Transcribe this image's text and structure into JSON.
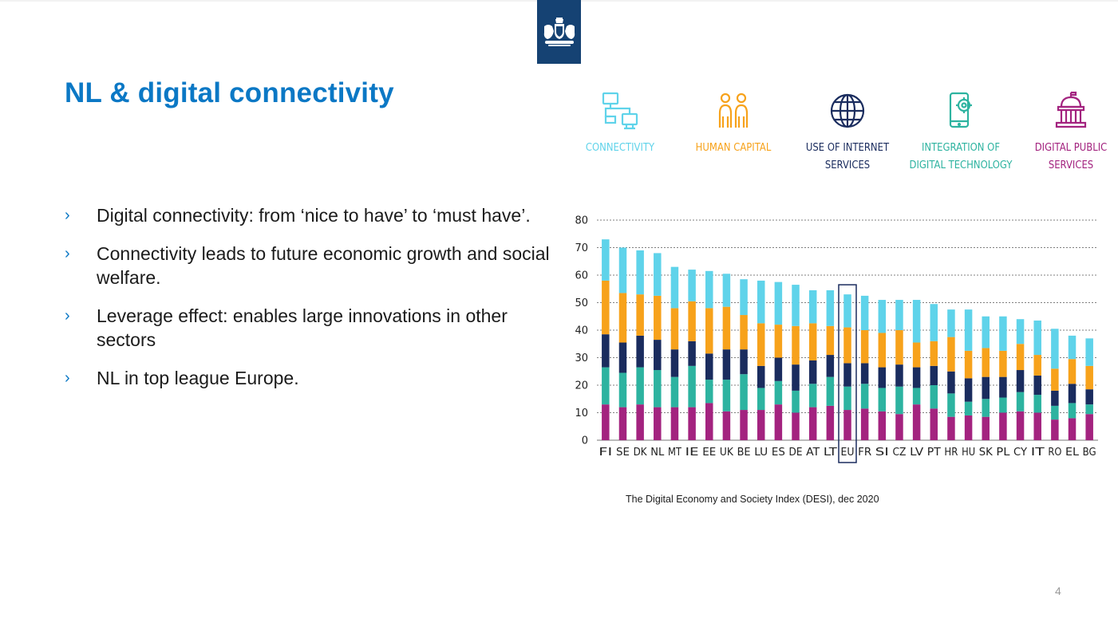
{
  "slide": {
    "title": "NL & digital connectivity",
    "bullet_marker": "›",
    "bullets": [
      "Digital connectivity: from ‘nice to have’ to ‘must have’.",
      "Connectivity leads to future economic growth and social welfare.",
      "Leverage effect: enables large innovations in other sectors",
      "NL in top league Europe."
    ],
    "source": "The Digital Economy and Society Index (DESI), dec 2020",
    "page_number": "4"
  },
  "legend": [
    {
      "label": "CONNECTIVITY",
      "color": "#5fd3ea",
      "icon": "network-icon"
    },
    {
      "label": "HUMAN CAPITAL",
      "color": "#f7a21b",
      "icon": "people-icon"
    },
    {
      "label": "USE OF INTERNET\nSERVICES",
      "color": "#1a2c5e",
      "icon": "globe-icon"
    },
    {
      "label": "INTEGRATION OF\nDIGITAL TECHNOLOGY",
      "color": "#2db3a0",
      "icon": "phone-gear-icon"
    },
    {
      "label": "DIGITAL PUBLIC\nSERVICES",
      "color": "#a3237f",
      "icon": "government-building-icon"
    }
  ],
  "chart_data": {
    "type": "bar",
    "stacked": true,
    "title": "",
    "xlabel": "",
    "ylabel": "",
    "ylim": [
      0,
      80
    ],
    "yticks": [
      0,
      10,
      20,
      30,
      40,
      50,
      60,
      70,
      80
    ],
    "grid": true,
    "highlight_category": "EU",
    "categories": [
      "FI",
      "SE",
      "DK",
      "NL",
      "MT",
      "IE",
      "EE",
      "UK",
      "BE",
      "LU",
      "ES",
      "DE",
      "AT",
      "LT",
      "EU",
      "FR",
      "SI",
      "CZ",
      "LV",
      "PT",
      "HR",
      "HU",
      "SK",
      "PL",
      "CY",
      "IT",
      "RO",
      "EL",
      "BG"
    ],
    "series": [
      {
        "name": "Digital public services",
        "color": "#a3237f",
        "values": [
          13,
          12,
          13,
          12,
          12,
          12,
          13.5,
          10.5,
          11,
          11,
          13,
          10,
          12,
          12.5,
          11,
          11.5,
          10.5,
          9.5,
          13,
          11.5,
          8.5,
          9,
          8.5,
          10,
          10.5,
          10,
          7.5,
          8,
          9.5
        ]
      },
      {
        "name": "Integration of digital technology",
        "color": "#2db3a0",
        "values": [
          13.5,
          12.5,
          13.5,
          13.5,
          11,
          15,
          8.5,
          11.5,
          13,
          8,
          8.5,
          8,
          8.5,
          10.5,
          8.5,
          9,
          8.5,
          10,
          6,
          8.5,
          8.5,
          5,
          6.5,
          5.5,
          7,
          6.5,
          5,
          5.5,
          3.5
        ]
      },
      {
        "name": "Use of internet services",
        "color": "#1a2c5e",
        "values": [
          12,
          11,
          11.5,
          11,
          10,
          9,
          9.5,
          11,
          9,
          8,
          8.5,
          9.5,
          8.5,
          8,
          8.5,
          7.5,
          7.5,
          8,
          7.5,
          7,
          8,
          8.5,
          8,
          7.5,
          8,
          7,
          5.5,
          7,
          5.5
        ]
      },
      {
        "name": "Human capital",
        "color": "#f7a21b",
        "values": [
          19.5,
          18,
          15,
          16,
          15,
          14.5,
          16.5,
          15.5,
          12.5,
          15.5,
          12,
          14,
          13.5,
          10.5,
          13,
          12,
          12.5,
          12.5,
          9,
          9,
          12.5,
          10,
          10.5,
          9.5,
          9.5,
          7.5,
          8,
          9,
          8.5
        ]
      },
      {
        "name": "Connectivity",
        "color": "#5fd3ea",
        "values": [
          15,
          16.5,
          16,
          15.5,
          15,
          11.5,
          13.5,
          12,
          13,
          15.5,
          15.5,
          15,
          12,
          13,
          12,
          12.5,
          12,
          11,
          15.5,
          13.5,
          10,
          15,
          11.5,
          12.5,
          9,
          12.5,
          14.5,
          8.5,
          10
        ]
      }
    ]
  }
}
